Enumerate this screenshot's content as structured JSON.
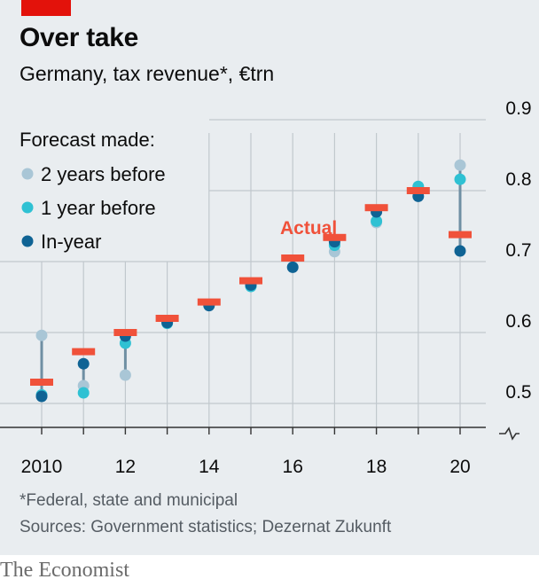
{
  "header": {
    "title": "Over take",
    "subtitle": "Germany, tax revenue*, €trn"
  },
  "footer": {
    "note": "*Federal, state and municipal",
    "sources": "Sources: Government statistics; Dezernat Zukunft",
    "brand": "The Economist"
  },
  "colors": {
    "background": "#e9edf0",
    "grid": "#c1c8cd",
    "axis": "#333333",
    "actual": "#f0513a",
    "two_years_before": "#a9c6d6",
    "one_year_before": "#2fc1d3",
    "in_year": "#0f6394",
    "stem": "#6f8fa3",
    "brand_red": "#e3120b"
  },
  "chart_data": {
    "type": "scatter",
    "title": "Over take",
    "subtitle": "Germany, tax revenue*, €trn",
    "x": [
      2010,
      2011,
      2012,
      2013,
      2014,
      2015,
      2016,
      2017,
      2018,
      2019,
      2020
    ],
    "x_tick_labels": [
      "2010",
      "12",
      "14",
      "16",
      "18",
      "20"
    ],
    "x_tick_values": [
      2010,
      2012,
      2014,
      2016,
      2018,
      2020
    ],
    "xlim": [
      2009.5,
      2020.6
    ],
    "y_tick_labels": [
      "0.5",
      "0.6",
      "0.7",
      "0.8",
      "0.9"
    ],
    "y_tick_values": [
      0.5,
      0.6,
      0.7,
      0.8,
      0.9
    ],
    "ylim": [
      0.465,
      0.92
    ],
    "y_axis_break": true,
    "grid": true,
    "legend_title": "Forecast made:",
    "legend_position": "top-left",
    "actual_label": "Actual",
    "series": [
      {
        "name": "Actual",
        "marker": "dash",
        "values": [
          0.53,
          0.573,
          0.6,
          0.62,
          0.643,
          0.673,
          0.705,
          0.734,
          0.776,
          0.8,
          0.738
        ]
      },
      {
        "name": "2 years before",
        "marker": "dot",
        "values": [
          0.596,
          0.525,
          0.54,
          null,
          null,
          null,
          null,
          0.714,
          0.755,
          null,
          0.836
        ]
      },
      {
        "name": "1 year before",
        "marker": "dot",
        "values": [
          0.512,
          0.515,
          0.585,
          0.613,
          null,
          0.665,
          null,
          0.723,
          0.757,
          0.806,
          0.816
        ]
      },
      {
        "name": "In-year",
        "marker": "dot",
        "values": [
          0.51,
          0.556,
          0.595,
          0.614,
          0.638,
          0.667,
          0.692,
          0.728,
          0.77,
          0.792,
          0.715
        ]
      }
    ]
  }
}
